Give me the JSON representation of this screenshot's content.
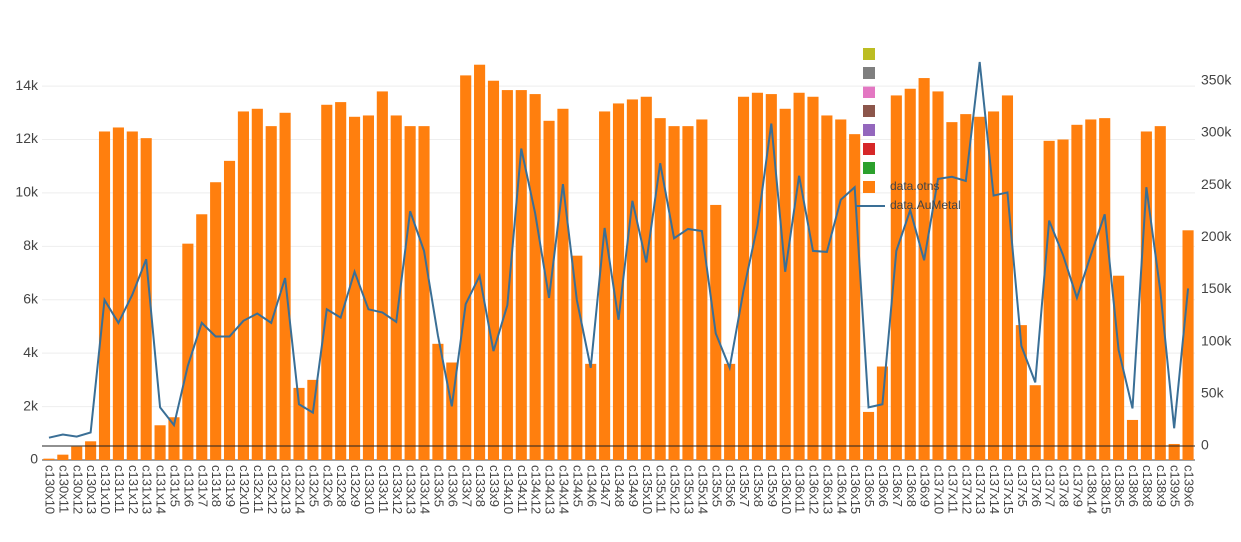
{
  "chart_data": {
    "type": "bar_line",
    "categories": [
      "c130x10",
      "c130x11",
      "c130x12",
      "c130x13",
      "c131x10",
      "c131x11",
      "c131x12",
      "c131x13",
      "c131x14",
      "c131x5",
      "c131x6",
      "c131x7",
      "c131x8",
      "c131x9",
      "c132x10",
      "c132x11",
      "c132x12",
      "c132x13",
      "c132x14",
      "c132x5",
      "c132x6",
      "c132x8",
      "c132x9",
      "c133x10",
      "c133x11",
      "c133x12",
      "c133x13",
      "c133x14",
      "c133x5",
      "c133x6",
      "c133x7",
      "c133x8",
      "c133x9",
      "c134x10",
      "c134x11",
      "c134x12",
      "c134x13",
      "c134x14",
      "c134x5",
      "c134x6",
      "c134x7",
      "c134x8",
      "c134x9",
      "c135x10",
      "c135x11",
      "c135x12",
      "c135x13",
      "c135x14",
      "c135x5",
      "c135x6",
      "c135x7",
      "c135x8",
      "c135x9",
      "c136x10",
      "c136x11",
      "c136x12",
      "c136x13",
      "c136x14",
      "c136x15",
      "c136x5",
      "c136x6",
      "c136x7",
      "c136x8",
      "c136x9",
      "c137x10",
      "c137x11",
      "c137x12",
      "c137x13",
      "c137x14",
      "c137x15",
      "c137x5",
      "c137x6",
      "c137x7",
      "c137x8",
      "c137x9",
      "c138x14",
      "c138x15",
      "c138x5",
      "c138x6",
      "c138x8",
      "c138x9",
      "c139x5",
      "c139x6"
    ],
    "series": [
      {
        "name": "data.otns",
        "type": "bar",
        "color": "#ff7f0e",
        "values": [
          50,
          200,
          500,
          700,
          12300,
          12450,
          12300,
          12050,
          1300,
          1600,
          8100,
          9200,
          10400,
          11200,
          13050,
          13150,
          12500,
          13000,
          2700,
          3000,
          13300,
          13400,
          12850,
          12900,
          13800,
          12900,
          12500,
          12500,
          4350,
          3650,
          14400,
          14800,
          14200,
          13850,
          13850,
          13700,
          12700,
          13150,
          7650,
          3600,
          13050,
          13350,
          13500,
          13600,
          12800,
          12500,
          12500,
          12750,
          9550,
          3600,
          13600,
          13750,
          13700,
          13150,
          13750,
          13600,
          12900,
          12750,
          12200,
          1800,
          3500,
          13650,
          13900,
          14300,
          13800,
          12650,
          12950,
          12850,
          13050,
          13650,
          5050,
          2800,
          11950,
          12000,
          12550,
          12750,
          12800,
          6900,
          1500,
          12300,
          12500,
          600,
          8600
        ]
      },
      {
        "name": "data.AuMetal",
        "type": "line",
        "axis": "y2",
        "color": "#3a6f96",
        "values": [
          8000,
          11000,
          9000,
          13000,
          140000,
          118000,
          145000,
          179000,
          37000,
          20000,
          77000,
          118000,
          105000,
          105000,
          120000,
          127000,
          118000,
          161000,
          40000,
          32000,
          131000,
          123000,
          167000,
          131000,
          128000,
          119000,
          225000,
          187000,
          106000,
          38000,
          136000,
          163000,
          91000,
          135000,
          285000,
          223000,
          142000,
          251000,
          140000,
          75000,
          209000,
          121000,
          235000,
          176000,
          271000,
          199000,
          208000,
          206000,
          108000,
          75000,
          149000,
          211000,
          309000,
          167000,
          259000,
          187000,
          186000,
          236000,
          248000,
          37000,
          40000,
          187000,
          226000,
          178000,
          256000,
          258000,
          254000,
          368000,
          240000,
          243000,
          96000,
          61000,
          216000,
          183000,
          142000,
          183000,
          222000,
          92000,
          36000,
          248000,
          149000,
          17000,
          151000
        ]
      }
    ],
    "ylim": [
      0,
      15800
    ],
    "yticks": [
      0,
      {
        "value": 2000,
        "label": "2k"
      },
      {
        "value": 4000,
        "label": "4k"
      },
      {
        "value": 6000,
        "label": "6k"
      },
      {
        "value": 8000,
        "label": "8k"
      },
      {
        "value": 10000,
        "label": "10k"
      },
      {
        "value": 12000,
        "label": "12k"
      },
      {
        "value": 14000,
        "label": "14k"
      }
    ],
    "y2lim": [
      -13400,
      391000
    ],
    "y2ticks": [
      0,
      {
        "value": 50000,
        "label": "50k"
      },
      {
        "value": 100000,
        "label": "100k"
      },
      {
        "value": 150000,
        "label": "150k"
      },
      {
        "value": 200000,
        "label": "200k"
      },
      {
        "value": 250000,
        "label": "250k"
      },
      {
        "value": 300000,
        "label": "300k"
      },
      {
        "value": 350000,
        "label": "350k"
      }
    ],
    "grid": true
  }
}
